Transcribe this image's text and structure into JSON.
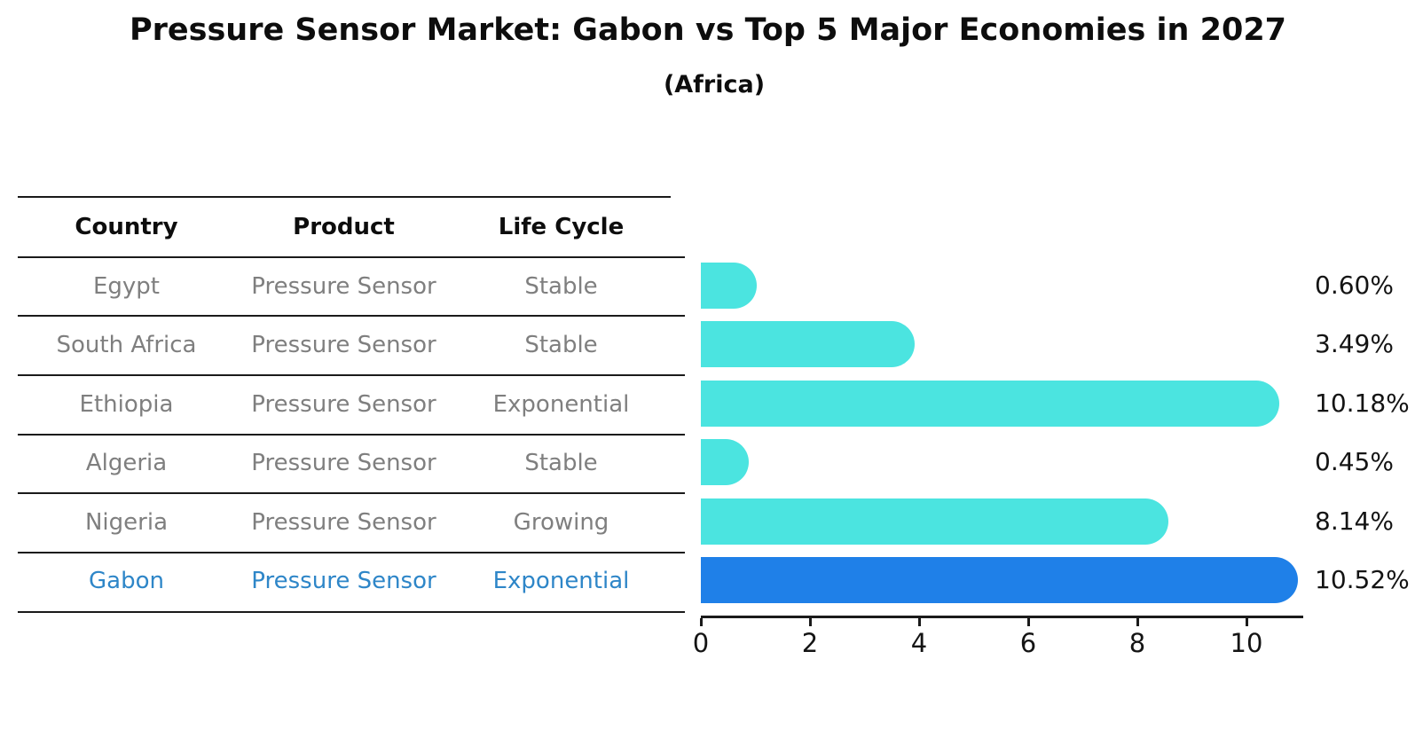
{
  "title": "Pressure Sensor Market: Gabon vs Top 5 Major Economies in 2027",
  "subtitle": "(Africa)",
  "table": {
    "headers": [
      "Country",
      "Product",
      "Life Cycle"
    ],
    "rows": [
      {
        "country": "Egypt",
        "product": "Pressure Sensor",
        "life_cycle": "Stable",
        "highlight": false
      },
      {
        "country": "South Africa",
        "product": "Pressure Sensor",
        "life_cycle": "Stable",
        "highlight": false
      },
      {
        "country": "Ethiopia",
        "product": "Pressure Sensor",
        "life_cycle": "Exponential",
        "highlight": false
      },
      {
        "country": "Algeria",
        "product": "Pressure Sensor",
        "life_cycle": "Stable",
        "highlight": false
      },
      {
        "country": "Nigeria",
        "product": "Pressure Sensor",
        "life_cycle": "Growing",
        "highlight": false
      },
      {
        "country": "Gabon",
        "product": "Pressure Sensor",
        "life_cycle": "Exponential",
        "highlight": true
      }
    ]
  },
  "chart_data": {
    "type": "bar",
    "orientation": "horizontal",
    "title": "Pressure Sensor Market: Gabon vs Top 5 Major Economies in 2027",
    "subtitle": "(Africa)",
    "categories": [
      "Egypt",
      "South Africa",
      "Ethiopia",
      "Algeria",
      "Nigeria",
      "Gabon"
    ],
    "values": [
      0.6,
      3.49,
      10.18,
      0.45,
      8.14,
      10.52
    ],
    "value_labels": [
      "0.60%",
      "3.49%",
      "10.18%",
      "0.45%",
      "8.14%",
      "10.52%"
    ],
    "xlabel": "",
    "ylabel": "",
    "xlim": [
      0,
      11
    ],
    "xticks": [
      0,
      2,
      4,
      6,
      8,
      10
    ],
    "grid": false,
    "legend": false,
    "bar_color": "#4be4e0",
    "highlight_index": 5,
    "highlight_bar_color": "#1f80e8",
    "highlight_text_color": "#2e86c8",
    "text_color": "#7f7f7f",
    "axis_color": "#1a1a1a"
  }
}
